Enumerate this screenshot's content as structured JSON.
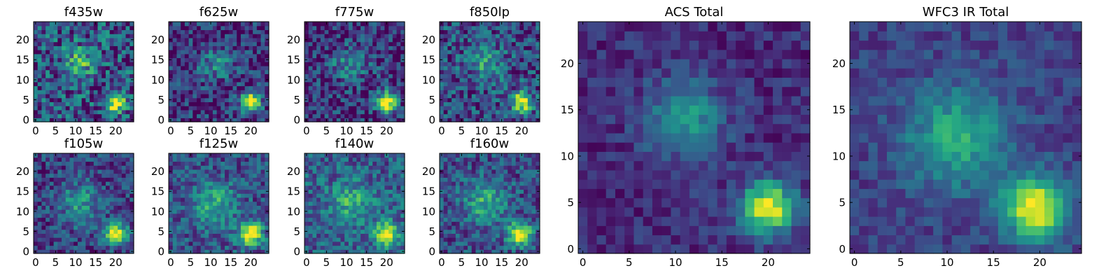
{
  "chart_data": [
    {
      "type": "heatmap",
      "title": "f435w",
      "xlabel": "",
      "ylabel": "",
      "xlim": [
        0,
        24
      ],
      "ylim": [
        0,
        24
      ],
      "xticks": [
        0,
        5,
        10,
        15,
        20
      ],
      "yticks": [
        0,
        5,
        10,
        15,
        20
      ],
      "grid": false,
      "colormap": "viridis",
      "noise": 0.62,
      "background": 0.26,
      "sources": [
        {
          "x": 20,
          "y": 4.5,
          "sigma": 1.8,
          "amp": 0.78
        },
        {
          "x": 11,
          "y": 14.5,
          "sigma": 3.0,
          "amp": 0.35
        }
      ]
    },
    {
      "type": "heatmap",
      "title": "f625w",
      "xlabel": "",
      "ylabel": "",
      "xlim": [
        0,
        24
      ],
      "ylim": [
        0,
        24
      ],
      "xticks": [
        0,
        5,
        10,
        15,
        20
      ],
      "yticks": [
        0,
        5,
        10,
        15,
        20
      ],
      "grid": false,
      "colormap": "viridis",
      "noise": 0.5,
      "background": 0.15,
      "sources": [
        {
          "x": 20,
          "y": 4.5,
          "sigma": 1.9,
          "amp": 0.82
        },
        {
          "x": 11,
          "y": 14.0,
          "sigma": 3.0,
          "amp": 0.32
        }
      ]
    },
    {
      "type": "heatmap",
      "title": "f775w",
      "xlabel": "",
      "ylabel": "",
      "xlim": [
        0,
        24
      ],
      "ylim": [
        0,
        24
      ],
      "xticks": [
        0,
        5,
        10,
        15,
        20
      ],
      "yticks": [
        0,
        5,
        10,
        15,
        20
      ],
      "grid": false,
      "colormap": "viridis",
      "noise": 0.5,
      "background": 0.16,
      "sources": [
        {
          "x": 20,
          "y": 4.5,
          "sigma": 1.9,
          "amp": 0.8
        },
        {
          "x": 11,
          "y": 14.0,
          "sigma": 3.2,
          "amp": 0.33
        }
      ]
    },
    {
      "type": "heatmap",
      "title": "f850lp",
      "xlabel": "",
      "ylabel": "",
      "xlim": [
        0,
        24
      ],
      "ylim": [
        0,
        24
      ],
      "xticks": [
        0,
        5,
        10,
        15,
        20
      ],
      "yticks": [
        0,
        5,
        10,
        15,
        20
      ],
      "grid": false,
      "colormap": "viridis",
      "noise": 0.55,
      "background": 0.22,
      "sources": [
        {
          "x": 20,
          "y": 4.5,
          "sigma": 1.9,
          "amp": 0.78
        },
        {
          "x": 11,
          "y": 14.0,
          "sigma": 3.2,
          "amp": 0.32
        }
      ]
    },
    {
      "type": "heatmap",
      "title": "f105w",
      "xlabel": "",
      "ylabel": "",
      "xlim": [
        0,
        24
      ],
      "ylim": [
        0,
        24
      ],
      "xticks": [
        0,
        5,
        10,
        15,
        20
      ],
      "yticks": [
        0,
        5,
        10,
        15,
        20
      ],
      "grid": false,
      "colormap": "viridis",
      "noise": 0.42,
      "background": 0.2,
      "sources": [
        {
          "x": 20,
          "y": 4.5,
          "sigma": 2.0,
          "amp": 0.8
        },
        {
          "x": 11,
          "y": 12.0,
          "sigma": 3.6,
          "amp": 0.34
        }
      ]
    },
    {
      "type": "heatmap",
      "title": "f125w",
      "xlabel": "",
      "ylabel": "",
      "xlim": [
        0,
        24
      ],
      "ylim": [
        0,
        24
      ],
      "xticks": [
        0,
        5,
        10,
        15,
        20
      ],
      "yticks": [
        0,
        5,
        10,
        15,
        20
      ],
      "grid": false,
      "colormap": "viridis",
      "noise": 0.42,
      "background": 0.25,
      "sources": [
        {
          "x": 20,
          "y": 4.5,
          "sigma": 2.1,
          "amp": 0.78
        },
        {
          "x": 11,
          "y": 12.0,
          "sigma": 3.8,
          "amp": 0.38
        }
      ]
    },
    {
      "type": "heatmap",
      "title": "f140w",
      "xlabel": "",
      "ylabel": "",
      "xlim": [
        0,
        24
      ],
      "ylim": [
        0,
        24
      ],
      "xticks": [
        0,
        5,
        10,
        15,
        20
      ],
      "yticks": [
        0,
        5,
        10,
        15,
        20
      ],
      "grid": false,
      "colormap": "viridis",
      "noise": 0.42,
      "background": 0.3,
      "sources": [
        {
          "x": 20,
          "y": 4.5,
          "sigma": 2.1,
          "amp": 0.74
        },
        {
          "x": 11,
          "y": 12.0,
          "sigma": 3.8,
          "amp": 0.34
        }
      ]
    },
    {
      "type": "heatmap",
      "title": "f160w",
      "xlabel": "",
      "ylabel": "",
      "xlim": [
        0,
        24
      ],
      "ylim": [
        0,
        24
      ],
      "xticks": [
        0,
        5,
        10,
        15,
        20
      ],
      "yticks": [
        0,
        5,
        10,
        15,
        20
      ],
      "grid": false,
      "colormap": "viridis",
      "noise": 0.42,
      "background": 0.24,
      "sources": [
        {
          "x": 19.5,
          "y": 4.5,
          "sigma": 2.0,
          "amp": 0.8
        },
        {
          "x": 11,
          "y": 12.0,
          "sigma": 3.8,
          "amp": 0.38
        }
      ]
    },
    {
      "type": "heatmap",
      "title": "ACS Total",
      "xlabel": "",
      "ylabel": "",
      "xlim": [
        0,
        24
      ],
      "ylim": [
        0,
        24
      ],
      "xticks": [
        0,
        5,
        10,
        15,
        20
      ],
      "yticks": [
        0,
        5,
        10,
        15,
        20
      ],
      "grid": false,
      "colormap": "viridis",
      "noise": 0.24,
      "background": 0.13,
      "sources": [
        {
          "x": 20,
          "y": 4.5,
          "sigma": 2.0,
          "amp": 0.85
        },
        {
          "x": 11,
          "y": 14.0,
          "sigma": 3.0,
          "amp": 0.4
        }
      ]
    },
    {
      "type": "heatmap",
      "title": "WFC3 IR Total",
      "xlabel": "",
      "ylabel": "",
      "xlim": [
        0,
        24
      ],
      "ylim": [
        0,
        24
      ],
      "xticks": [
        0,
        5,
        10,
        15,
        20
      ],
      "yticks": [
        0,
        5,
        10,
        15,
        20
      ],
      "grid": false,
      "colormap": "viridis",
      "noise": 0.22,
      "background": 0.2,
      "sources": [
        {
          "x": 19.5,
          "y": 4.5,
          "sigma": 2.3,
          "amp": 0.82
        },
        {
          "x": 11,
          "y": 12.0,
          "sigma": 3.8,
          "amp": 0.42
        }
      ]
    }
  ]
}
